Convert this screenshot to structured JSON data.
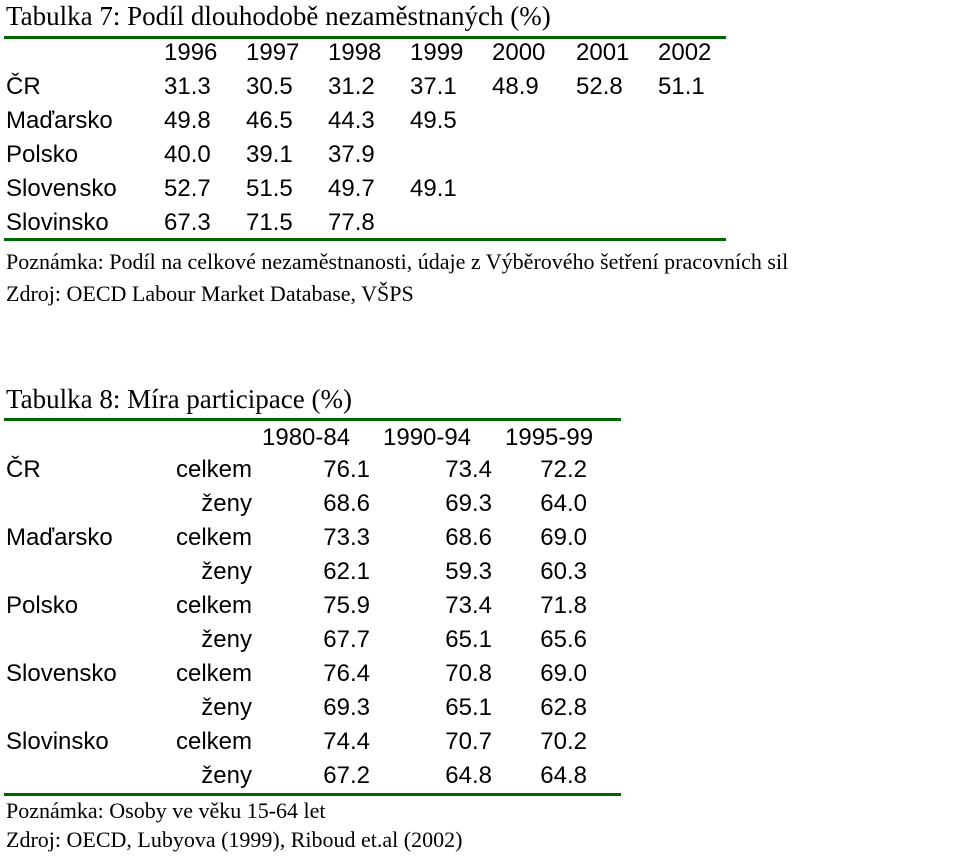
{
  "table7": {
    "title": "Tabulka 7: Podíl dlouhodobě nezaměstnaných (%)",
    "years": [
      "1996",
      "1997",
      "1998",
      "1999",
      "2000",
      "2001",
      "2002"
    ],
    "rows": [
      {
        "country": "ČR",
        "values": [
          "31.3",
          "30.5",
          "31.2",
          "37.1",
          "48.9",
          "52.8",
          "51.1"
        ]
      },
      {
        "country": "Maďarsko",
        "values": [
          "49.8",
          "46.5",
          "44.3",
          "49.5",
          "",
          "",
          ""
        ]
      },
      {
        "country": "Polsko",
        "values": [
          "40.0",
          "39.1",
          "37.9",
          "",
          "",
          "",
          ""
        ]
      },
      {
        "country": "Slovensko",
        "values": [
          "52.7",
          "51.5",
          "49.7",
          "49.1",
          "",
          "",
          ""
        ]
      },
      {
        "country": "Slovinsko",
        "values": [
          "67.3",
          "71.5",
          "77.8",
          "",
          "",
          "",
          ""
        ]
      }
    ],
    "note": "Poznámka: Podíl na celkové nezaměstnanosti, údaje z Výběrového šetření pracovních sil",
    "source": "Zdroj: OECD Labour Market Database, VŠPS"
  },
  "table8": {
    "title": "Tabulka 8: Míra participace (%)",
    "periods": [
      "1980-84",
      "1990-94",
      "1995-99"
    ],
    "rows": [
      {
        "country": "ČR",
        "group": "celkem",
        "values": [
          "76.1",
          "73.4",
          "72.2"
        ]
      },
      {
        "country": "",
        "group": "ženy",
        "values": [
          "68.6",
          "69.3",
          "64.0"
        ]
      },
      {
        "country": "Maďarsko",
        "group": "celkem",
        "values": [
          "73.3",
          "68.6",
          "69.0"
        ]
      },
      {
        "country": "",
        "group": "ženy",
        "values": [
          "62.1",
          "59.3",
          "60.3"
        ]
      },
      {
        "country": "Polsko",
        "group": "celkem",
        "values": [
          "75.9",
          "73.4",
          "71.8"
        ]
      },
      {
        "country": "",
        "group": "ženy",
        "values": [
          "67.7",
          "65.1",
          "65.6"
        ]
      },
      {
        "country": "Slovensko",
        "group": "celkem",
        "values": [
          "76.4",
          "70.8",
          "69.0"
        ]
      },
      {
        "country": "",
        "group": "ženy",
        "values": [
          "69.3",
          "65.1",
          "62.8"
        ]
      },
      {
        "country": "Slovinsko",
        "group": "celkem",
        "values": [
          "74.4",
          "70.7",
          "70.2"
        ]
      },
      {
        "country": "",
        "group": "ženy",
        "values": [
          "67.2",
          "64.8",
          "64.8"
        ]
      }
    ],
    "note": "Poznámka: Osoby ve věku 15-64 let",
    "source": "Zdroj: OECD, Lubyova (1999), Riboud et.al (2002)"
  },
  "colors": {
    "rule": "#006600",
    "text": "#000000",
    "background": "#ffffff"
  }
}
